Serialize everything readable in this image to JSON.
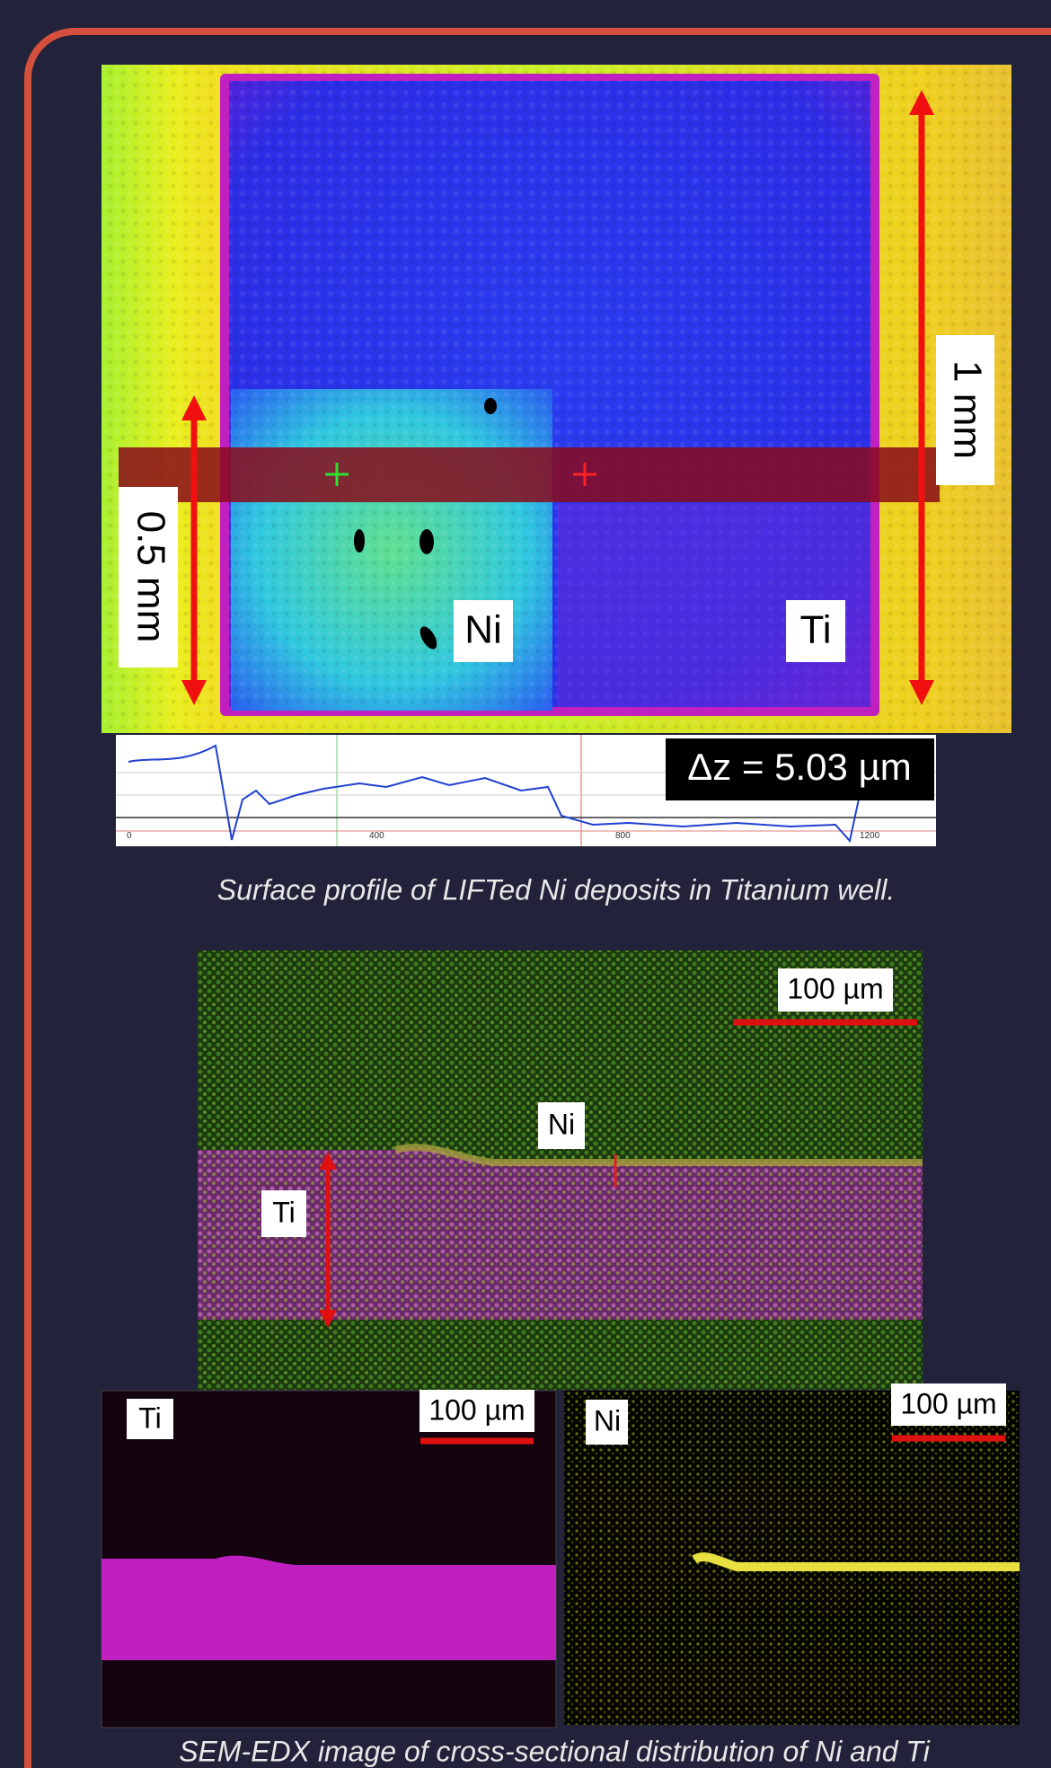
{
  "surface_profile": {
    "labels": {
      "vertical_long": "1 mm",
      "vertical_short": "0.5 mm",
      "ni": "Ni",
      "ti": "Ti"
    },
    "profile_plot": {
      "xticks": [
        "0",
        "400",
        "800",
        "1200"
      ],
      "annotation": "Δz = 5.03 µm"
    },
    "caption": "Surface profile of LIFTed Ni deposits in Titanium well."
  },
  "sem_edx": {
    "main": {
      "scale": "100 µm",
      "ni": "Ni",
      "ti": "Ti"
    },
    "ti_map": {
      "label": "Ti",
      "scale": "100 µm"
    },
    "ni_map": {
      "label": "Ni",
      "scale": "100 µm"
    },
    "caption": "SEM-EDX image of cross-sectional distribution of Ni and Ti"
  }
}
